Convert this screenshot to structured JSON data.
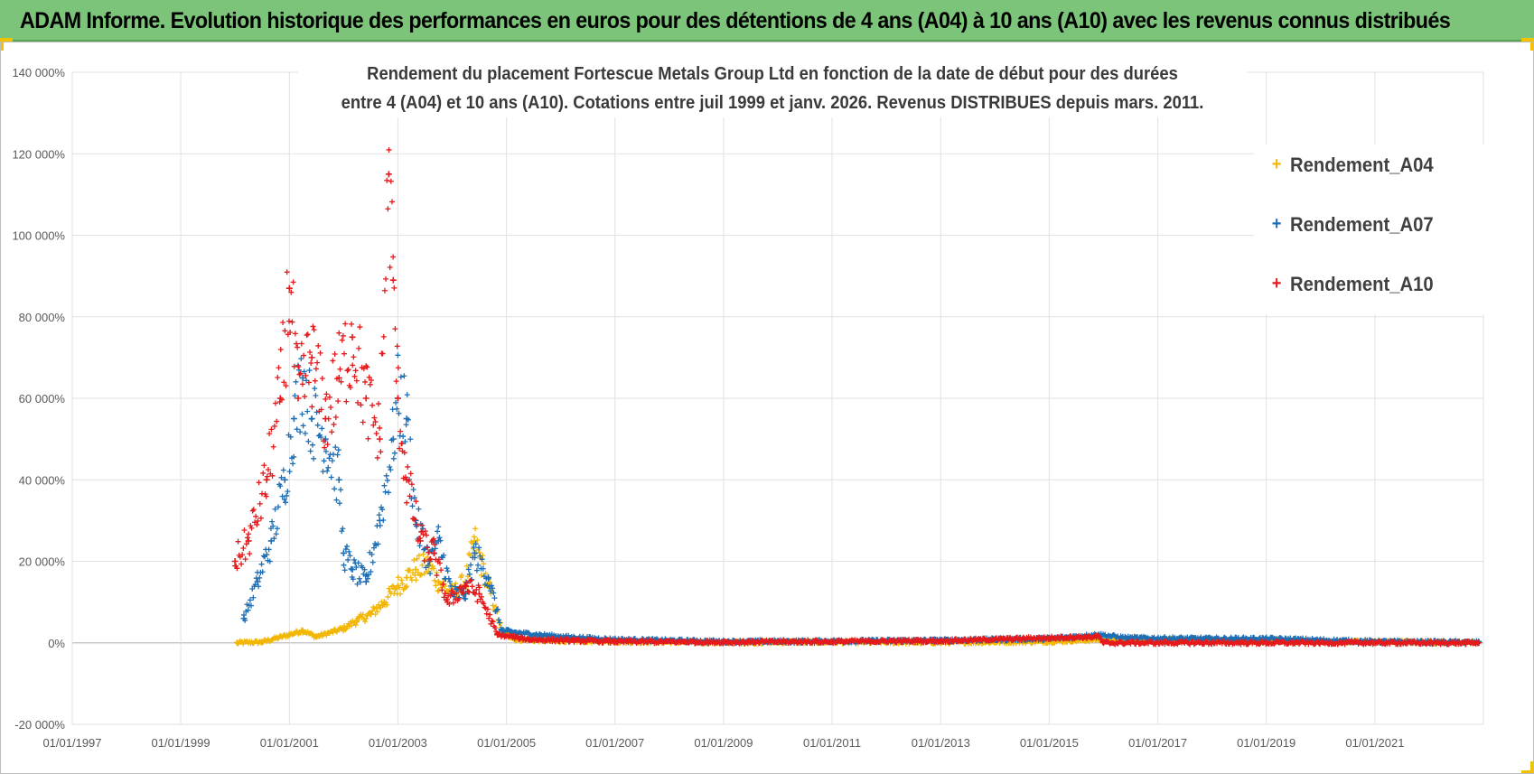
{
  "header": {
    "title": "ADAM Informe. Evolution historique des performances en euros pour des détentions de 4 ans (A04) à 10 ans (A10) avec les revenus connus distribués"
  },
  "chart_data": {
    "type": "scatter",
    "title_line1": "Rendement du placement Fortescue Metals Group Ltd en fonction de la date de début pour des durées",
    "title_line2": "entre 4 (A04) et 10 ans (A10).  Cotations entre juil 1999 et janv. 2026. Revenus DISTRIBUES depuis mars. 2011.",
    "xlabel": "",
    "ylabel": "",
    "x_ticks": [
      "01/01/1997",
      "01/01/1999",
      "01/01/2001",
      "01/01/2003",
      "01/01/2005",
      "01/01/2007",
      "01/01/2009",
      "01/01/2011",
      "01/01/2013",
      "01/01/2015",
      "01/01/2017",
      "01/01/2019",
      "01/01/2021"
    ],
    "y_ticks": [
      "-20 000%",
      "0%",
      "20 000%",
      "40 000%",
      "60 000%",
      "80 000%",
      "100 000%",
      "120 000%",
      "140 000%"
    ],
    "xlim": [
      "1997-01-01",
      "2023-01-01"
    ],
    "ylim": [
      -20000,
      140000
    ],
    "grid": true,
    "legend_position": "top-right",
    "series": [
      {
        "name": "Rendement_A04",
        "color": "#f2b705",
        "marker": "+",
        "points": [
          [
            "2000-01-15",
            0
          ],
          [
            "2000-07-01",
            200
          ],
          [
            "2001-01-01",
            2000
          ],
          [
            "2001-04-01",
            3000
          ],
          [
            "2001-07-01",
            1500
          ],
          [
            "2002-01-01",
            3500
          ],
          [
            "2002-04-01",
            5500
          ],
          [
            "2002-07-01",
            7000
          ],
          [
            "2002-10-01",
            10000
          ],
          [
            "2003-01-01",
            14000
          ],
          [
            "2003-03-01",
            16000
          ],
          [
            "2003-05-01",
            18000
          ],
          [
            "2003-08-01",
            19000
          ],
          [
            "2003-10-01",
            15000
          ],
          [
            "2004-01-01",
            12000
          ],
          [
            "2004-04-01",
            15000
          ],
          [
            "2004-06-01",
            25000
          ],
          [
            "2004-09-01",
            14000
          ],
          [
            "2004-12-01",
            3000
          ],
          [
            "2005-03-01",
            800
          ],
          [
            "2006-01-01",
            500
          ],
          [
            "2007-01-01",
            300
          ],
          [
            "2009-01-01",
            100
          ],
          [
            "2011-01-01",
            200
          ],
          [
            "2013-01-01",
            100
          ],
          [
            "2015-01-01",
            300
          ],
          [
            "2015-12-01",
            800
          ],
          [
            "2016-06-01",
            700
          ],
          [
            "2018-01-01",
            600
          ],
          [
            "2019-06-01",
            400
          ],
          [
            "2021-01-01",
            200
          ],
          [
            "2022-12-01",
            100
          ]
        ]
      },
      {
        "name": "Rendement_A07",
        "color": "#1f6fb5",
        "marker": "+",
        "points": [
          [
            "2000-03-01",
            6000
          ],
          [
            "2000-06-01",
            15000
          ],
          [
            "2000-09-01",
            25000
          ],
          [
            "2000-12-01",
            40000
          ],
          [
            "2001-02-01",
            55000
          ],
          [
            "2001-04-01",
            65000
          ],
          [
            "2001-06-01",
            55000
          ],
          [
            "2001-09-01",
            50000
          ],
          [
            "2001-12-01",
            40000
          ],
          [
            "2002-01-01",
            22000
          ],
          [
            "2002-03-01",
            18000
          ],
          [
            "2002-06-01",
            15000
          ],
          [
            "2002-09-01",
            30000
          ],
          [
            "2002-12-01",
            50000
          ],
          [
            "2003-01-01",
            60000
          ],
          [
            "2003-03-01",
            55000
          ],
          [
            "2003-05-01",
            30000
          ],
          [
            "2003-08-01",
            20000
          ],
          [
            "2003-10-01",
            25000
          ],
          [
            "2004-01-01",
            12000
          ],
          [
            "2004-04-01",
            12000
          ],
          [
            "2004-06-01",
            22000
          ],
          [
            "2004-09-01",
            16000
          ],
          [
            "2004-12-01",
            3000
          ],
          [
            "2005-03-01",
            2500
          ],
          [
            "2006-01-01",
            1500
          ],
          [
            "2007-01-01",
            800
          ],
          [
            "2009-01-01",
            300
          ],
          [
            "2011-01-01",
            400
          ],
          [
            "2013-01-01",
            600
          ],
          [
            "2015-01-01",
            1000
          ],
          [
            "2015-12-01",
            2000
          ],
          [
            "2016-06-01",
            1200
          ],
          [
            "2018-01-01",
            1000
          ],
          [
            "2019-01-01",
            1000
          ],
          [
            "2021-01-01",
            300
          ],
          [
            "2022-12-01",
            100
          ]
        ]
      },
      {
        "name": "Rendement_A10",
        "color": "#e41a1c",
        "marker": "+",
        "points": [
          [
            "2000-01-01",
            20000
          ],
          [
            "2000-04-01",
            25000
          ],
          [
            "2000-08-01",
            40000
          ],
          [
            "2000-11-01",
            60000
          ],
          [
            "2001-01-01",
            87000
          ],
          [
            "2001-03-01",
            60000
          ],
          [
            "2001-06-01",
            70000
          ],
          [
            "2001-09-01",
            55000
          ],
          [
            "2001-12-01",
            65000
          ],
          [
            "2002-03-01",
            75000
          ],
          [
            "2002-06-01",
            60000
          ],
          [
            "2002-09-01",
            50000
          ],
          [
            "2002-11-01",
            115000
          ],
          [
            "2002-12-01",
            89000
          ],
          [
            "2003-01-01",
            60000
          ],
          [
            "2003-03-01",
            40000
          ],
          [
            "2003-06-01",
            25000
          ],
          [
            "2003-09-01",
            22000
          ],
          [
            "2003-12-01",
            10000
          ],
          [
            "2004-04-01",
            14000
          ],
          [
            "2004-07-01",
            12000
          ],
          [
            "2004-11-01",
            2000
          ],
          [
            "2005-06-01",
            800
          ],
          [
            "2007-01-01",
            300
          ],
          [
            "2009-01-01",
            200
          ],
          [
            "2011-01-01",
            300
          ],
          [
            "2013-01-01",
            500
          ],
          [
            "2015-01-01",
            1200
          ],
          [
            "2015-12-01",
            1500
          ],
          [
            "2016-01-01",
            0
          ],
          [
            "2019-01-01",
            0
          ],
          [
            "2022-12-01",
            0
          ]
        ]
      }
    ]
  }
}
